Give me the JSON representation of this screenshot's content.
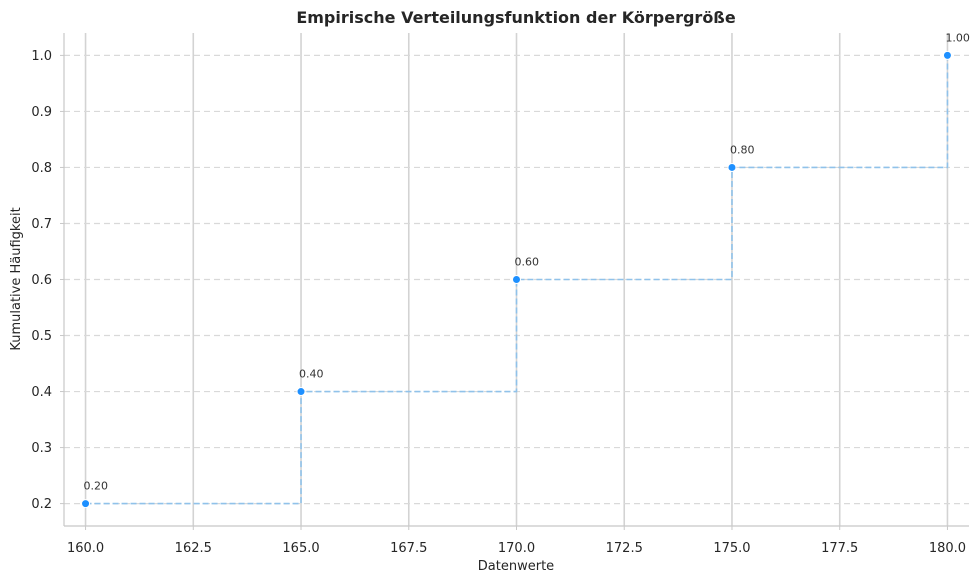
{
  "chart_data": {
    "type": "line",
    "title": "Empirische Verteilungsfunktion der Körpergröße",
    "xlabel": "Datenwerte",
    "ylabel": "Kumulative Häufigkeit",
    "x": [
      160,
      165,
      170,
      175,
      180
    ],
    "series": [
      {
        "values": [
          0.2,
          0.4,
          0.6,
          0.8,
          1.0
        ],
        "labels": [
          "0.20",
          "0.40",
          "0.60",
          "0.80",
          "1.00"
        ]
      }
    ],
    "xlim": [
      159.5,
      180.5
    ],
    "ylim": [
      0.16,
      1.04
    ],
    "xticks": [
      160,
      162.5,
      165,
      167.5,
      170,
      172.5,
      175,
      177.5,
      180
    ],
    "xtick_labels": [
      "160.0",
      "162.5",
      "165.0",
      "167.5",
      "170.0",
      "172.5",
      "175.0",
      "177.5",
      "180.0"
    ],
    "yticks": [
      0.2,
      0.3,
      0.4,
      0.5,
      0.6,
      0.7,
      0.8,
      0.9,
      1.0
    ],
    "ytick_labels": [
      "0.2",
      "0.3",
      "0.4",
      "0.5",
      "0.6",
      "0.7",
      "0.8",
      "0.9",
      "1.0"
    ],
    "step": "post",
    "grid": true,
    "colors": {
      "points": "#1e90ff",
      "line": "#90c2ea",
      "grid": "#d3d3d3"
    }
  }
}
